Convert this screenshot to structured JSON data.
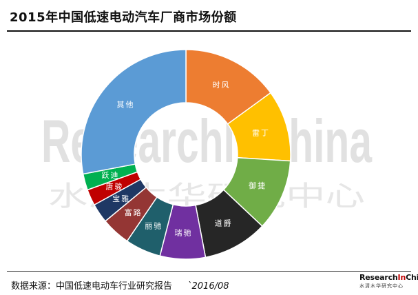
{
  "title": "2015年中国低速电动汽车厂商市场份额",
  "watermark": {
    "latin": "ResearchInChina",
    "chinese": "水清木华研究中心"
  },
  "footer": {
    "source": "数据来源：中国低速电动车行业研究报告",
    "date": "`2016/08",
    "logo_research": "Research",
    "logo_in": "In",
    "logo_china": "China",
    "logo_sub": "水清木华研究中心"
  },
  "chart_data": {
    "type": "pie",
    "donut": true,
    "title": "2015年中国低速电动汽车厂商市场份额",
    "categories": [
      "时风",
      "雷丁",
      "御捷",
      "道爵",
      "瑞驰",
      "丽驰",
      "富路",
      "宝雅",
      "唐骏",
      "跃迪",
      "其他"
    ],
    "values": [
      15.0,
      11.0,
      11.0,
      10.0,
      7.0,
      5.5,
      4.5,
      3.0,
      2.5,
      2.5,
      28.0
    ],
    "colors": [
      "#ED7D31",
      "#FFC000",
      "#70AD47",
      "#262626",
      "#7030A0",
      "#1F5F6B",
      "#943634",
      "#1F3864",
      "#C00000",
      "#00B050",
      "#5B9BD5"
    ],
    "unit": "%",
    "legend": "none",
    "labels_on_slices": true
  }
}
